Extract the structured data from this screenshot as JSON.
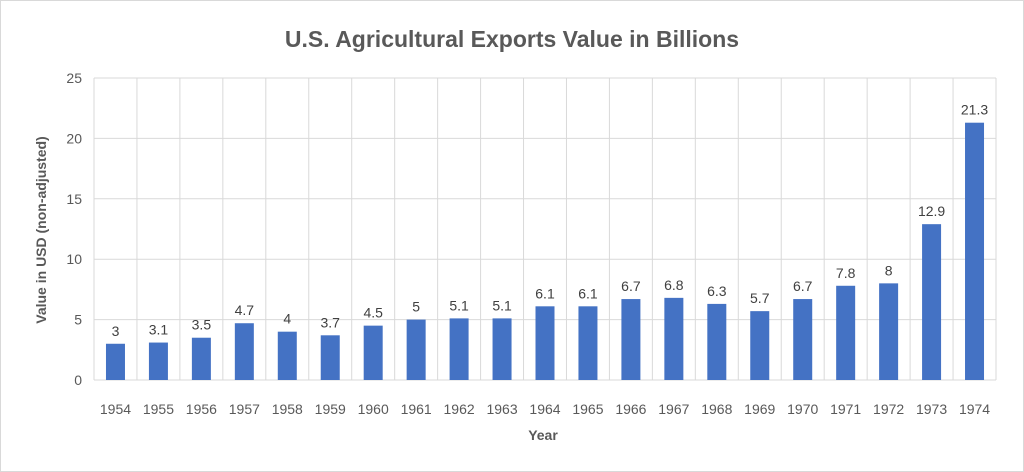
{
  "chart_data": {
    "type": "bar",
    "title": "U.S. Agricultural Exports Value in Billions",
    "xlabel": "Year",
    "ylabel": "Value in  USD (non-adjusted)",
    "categories": [
      "1954",
      "1955",
      "1956",
      "1957",
      "1958",
      "1959",
      "1960",
      "1961",
      "1962",
      "1963",
      "1964",
      "1965",
      "1966",
      "1967",
      "1968",
      "1969",
      "1970",
      "1971",
      "1972",
      "1973",
      "1974"
    ],
    "values": [
      3,
      3.1,
      3.5,
      4.7,
      4,
      3.7,
      4.5,
      5,
      5.1,
      5.1,
      6.1,
      6.1,
      6.7,
      6.8,
      6.3,
      5.7,
      6.7,
      7.8,
      8,
      12.9,
      21.3
    ],
    "data_labels": [
      "3",
      "3.1",
      "3.5",
      "4.7",
      "4",
      "3.7",
      "4.5",
      "5",
      "5.1",
      "5.1",
      "6.1",
      "6.1",
      "6.7",
      "6.8",
      "6.3",
      "5.7",
      "6.7",
      "7.8",
      "8",
      "12.9",
      "21.3"
    ],
    "ylim": [
      0,
      25
    ],
    "yticks": [
      "0",
      "5",
      "10",
      "15",
      "20",
      "25"
    ],
    "grid": "vertical and horizontal",
    "legend": "none",
    "bar_color": "#4472C4",
    "grid_color": "#d9d9d9"
  }
}
